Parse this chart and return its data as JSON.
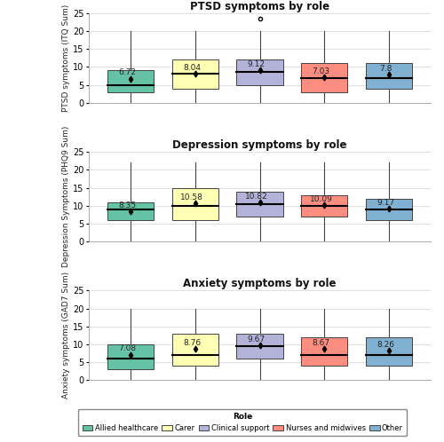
{
  "panels": [
    {
      "title": "PTSD symptoms by role",
      "ylabel": "PTSD symptoms (ITQ Sum)",
      "ylim": [
        0,
        25
      ],
      "yticks": [
        0,
        5,
        10,
        15,
        20,
        25
      ],
      "groups": [
        {
          "label": "Allied healthcare",
          "color": "#66c2a5",
          "mean": 6.72,
          "median": 5,
          "q1": 3,
          "q3": 9,
          "whisker_low": 0,
          "whisker_high": 20,
          "outliers": []
        },
        {
          "label": "Carer",
          "color": "#ffffb3",
          "mean": 8.04,
          "median": 8,
          "q1": 4,
          "q3": 12,
          "whisker_low": 0,
          "whisker_high": 20,
          "outliers": []
        },
        {
          "label": "Clinical support",
          "color": "#b3b3d9",
          "mean": 9.12,
          "median": 8.5,
          "q1": 5,
          "q3": 12,
          "whisker_low": 0,
          "whisker_high": 20,
          "outliers": [
            23.5
          ]
        },
        {
          "label": "Nurses and midwives",
          "color": "#fc8d80",
          "mean": 7.03,
          "median": 7,
          "q1": 3,
          "q3": 11,
          "whisker_low": 0,
          "whisker_high": 20,
          "outliers": []
        },
        {
          "label": "Other",
          "color": "#80b1d3",
          "mean": 7.8,
          "median": 7,
          "q1": 4,
          "q3": 11,
          "whisker_low": 0,
          "whisker_high": 20,
          "outliers": []
        }
      ]
    },
    {
      "title": "Depression symptoms by role",
      "ylabel": "Depression Symptoms (PHQ9 Sum)",
      "ylim": [
        0,
        25
      ],
      "yticks": [
        0,
        5,
        10,
        15,
        20,
        25
      ],
      "groups": [
        {
          "label": "Allied healthcare",
          "color": "#66c2a5",
          "mean": 8.35,
          "median": 9,
          "q1": 6,
          "q3": 11,
          "whisker_low": 0,
          "whisker_high": 22,
          "outliers": []
        },
        {
          "label": "Carer",
          "color": "#ffffb3",
          "mean": 10.58,
          "median": 10,
          "q1": 6,
          "q3": 15,
          "whisker_low": 0,
          "whisker_high": 22,
          "outliers": []
        },
        {
          "label": "Clinical support",
          "color": "#b3b3d9",
          "mean": 10.82,
          "median": 10.5,
          "q1": 7,
          "q3": 14,
          "whisker_low": 0,
          "whisker_high": 22,
          "outliers": []
        },
        {
          "label": "Nurses and midwives",
          "color": "#fc8d80",
          "mean": 10.09,
          "median": 10,
          "q1": 7,
          "q3": 13,
          "whisker_low": 0,
          "whisker_high": 22,
          "outliers": []
        },
        {
          "label": "Other",
          "color": "#80b1d3",
          "mean": 9.17,
          "median": 9,
          "q1": 6,
          "q3": 12,
          "whisker_low": 0,
          "whisker_high": 22,
          "outliers": []
        }
      ]
    },
    {
      "title": "Anxiety symptoms by role",
      "ylabel": "Anxiety symptoms (GAD7 Sum)",
      "ylim": [
        0,
        25
      ],
      "yticks": [
        0,
        5,
        10,
        15,
        20,
        25
      ],
      "groups": [
        {
          "label": "Allied healthcare",
          "color": "#66c2a5",
          "mean": 7.08,
          "median": 6,
          "q1": 3,
          "q3": 10,
          "whisker_low": 0,
          "whisker_high": 20,
          "outliers": []
        },
        {
          "label": "Carer",
          "color": "#ffffb3",
          "mean": 8.76,
          "median": 7,
          "q1": 4,
          "q3": 13,
          "whisker_low": 0,
          "whisker_high": 20,
          "outliers": []
        },
        {
          "label": "Clinical support",
          "color": "#b3b3d9",
          "mean": 9.67,
          "median": 9.5,
          "q1": 6,
          "q3": 13,
          "whisker_low": 0,
          "whisker_high": 20,
          "outliers": []
        },
        {
          "label": "Nurses and midwives",
          "color": "#fc8d80",
          "mean": 8.67,
          "median": 7,
          "q1": 4,
          "q3": 12,
          "whisker_low": 0,
          "whisker_high": 20,
          "outliers": []
        },
        {
          "label": "Other",
          "color": "#80b1d3",
          "mean": 8.26,
          "median": 7,
          "q1": 4,
          "q3": 12,
          "whisker_low": 0,
          "whisker_high": 20,
          "outliers": []
        }
      ]
    }
  ],
  "legend_labels": [
    "Allied healthcare",
    "Carer",
    "Clinical support",
    "Nurses and midwives",
    "Other"
  ],
  "legend_colors": [
    "#66c2a5",
    "#ffffb3",
    "#b3b3d9",
    "#fc8d80",
    "#80b1d3"
  ],
  "background_color": "#ffffff",
  "grid_color": "#e0e0e0",
  "box_edge_color": "#444444",
  "whisker_color": "#444444",
  "median_color": "#000000",
  "mean_marker_color": "#000000",
  "text_color": "#222222",
  "title_fontsize": 8.5,
  "label_fontsize": 6.5,
  "tick_fontsize": 7,
  "mean_fontsize": 6.5
}
